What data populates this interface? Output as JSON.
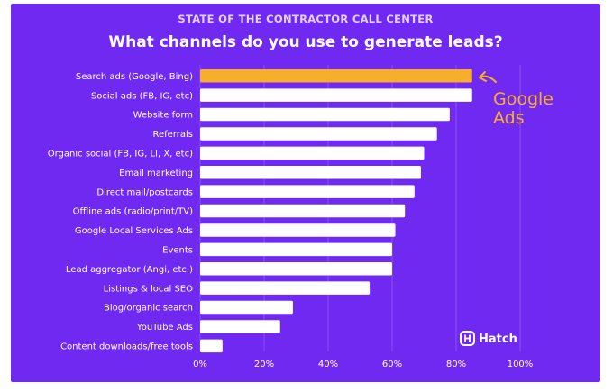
{
  "colors": {
    "background": "#7029f0",
    "bar": "#ffffff",
    "highlight": "#f7ae2a",
    "grid": "#8a52f3"
  },
  "chart_data": {
    "type": "bar",
    "orientation": "horizontal",
    "supertitle": "STATE OF THE CONTRACTOR CALL CENTER",
    "title": "What channels do you use to generate leads?",
    "categories": [
      "Search ads (Google, Bing)",
      "Social ads (FB, IG, etc)",
      "Website form",
      "Referrals",
      "Organic social (FB, IG, LI, X, etc)",
      "Email marketing",
      "Direct mail/postcards",
      "Offline ads (radio/print/TV)",
      "Google Local Services Ads",
      "Events",
      "Lead aggregator (Angi, etc.)",
      "Listings & local SEO",
      "Blog/organic search",
      "YouTube Ads",
      "Content downloads/free tools"
    ],
    "values": [
      85,
      85,
      78,
      74,
      70,
      69,
      67,
      64,
      61,
      60,
      60,
      53,
      29,
      25,
      7
    ],
    "highlight_index": 0,
    "xlim": [
      0,
      100
    ],
    "xticks": [
      "0%",
      "20%",
      "40%",
      "60%",
      "80%",
      "100%"
    ],
    "grid": true,
    "annotation": {
      "line1": "Google",
      "line2": "Ads"
    },
    "brand": "Hatch"
  }
}
